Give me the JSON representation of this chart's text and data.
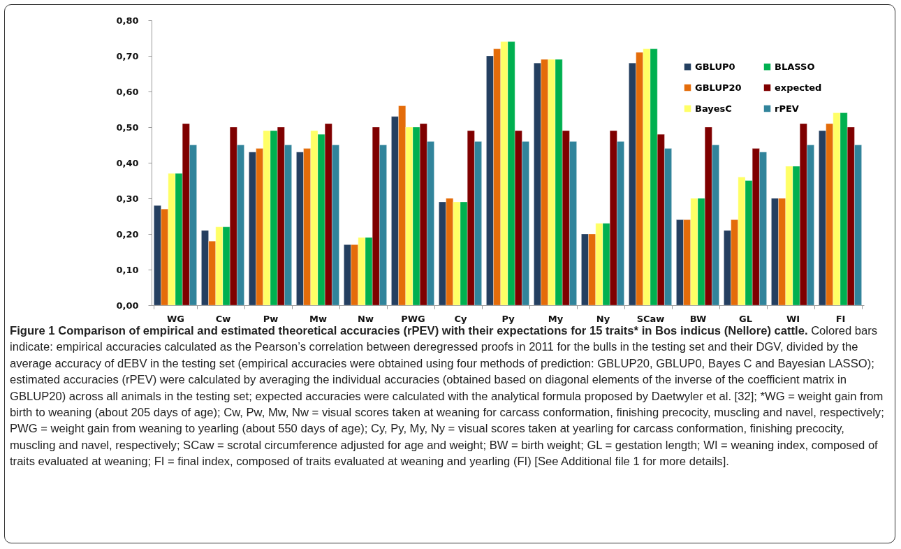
{
  "chart_data": {
    "type": "bar",
    "title": "Figure 1 Comparison of empirical and estimated theoretical accuracies (rPEV) with their expectations for 15 traits* in Bos indicus (Nellore) cattle.",
    "categories": [
      "WG",
      "Cw",
      "Pw",
      "Mw",
      "Nw",
      "PWG",
      "Cy",
      "Py",
      "My",
      "Ny",
      "SCaw",
      "BW",
      "GL",
      "WI",
      "FI"
    ],
    "series": [
      {
        "name": "GBLUP0",
        "color": "#243f60",
        "values": [
          0.28,
          0.21,
          0.43,
          0.43,
          0.17,
          0.53,
          0.29,
          0.7,
          0.68,
          0.2,
          0.68,
          0.24,
          0.21,
          0.3,
          0.49
        ]
      },
      {
        "name": "GBLUP20",
        "color": "#e46c0a",
        "values": [
          0.27,
          0.18,
          0.44,
          0.44,
          0.17,
          0.56,
          0.3,
          0.72,
          0.69,
          0.2,
          0.71,
          0.24,
          0.24,
          0.3,
          0.51
        ]
      },
      {
        "name": "BayesC",
        "color": "#ffff66",
        "values": [
          0.37,
          0.22,
          0.49,
          0.49,
          0.19,
          0.5,
          0.29,
          0.74,
          0.69,
          0.23,
          0.72,
          0.3,
          0.36,
          0.39,
          0.54
        ]
      },
      {
        "name": "BLASSO",
        "color": "#00b050",
        "values": [
          0.37,
          0.22,
          0.49,
          0.48,
          0.19,
          0.5,
          0.29,
          0.74,
          0.69,
          0.23,
          0.72,
          0.3,
          0.35,
          0.39,
          0.54
        ]
      },
      {
        "name": "expected",
        "color": "#7f0000",
        "values": [
          0.51,
          0.5,
          0.5,
          0.51,
          0.5,
          0.51,
          0.49,
          0.49,
          0.49,
          0.49,
          0.48,
          0.5,
          0.44,
          0.51,
          0.5
        ]
      },
      {
        "name": "rPEV",
        "color": "#31849b",
        "values": [
          0.45,
          0.45,
          0.45,
          0.45,
          0.45,
          0.46,
          0.46,
          0.46,
          0.46,
          0.46,
          0.44,
          0.45,
          0.43,
          0.45,
          0.45
        ]
      }
    ],
    "ylim": [
      0,
      0.8
    ],
    "yticks": [
      {
        "value": 0,
        "label": "0,00"
      },
      {
        "value": 0.1,
        "label": "0,10"
      },
      {
        "value": 0.2,
        "label": "0,20"
      },
      {
        "value": 0.3,
        "label": "0,30"
      },
      {
        "value": 0.4,
        "label": "0,40"
      },
      {
        "value": 0.5,
        "label": "0,50"
      },
      {
        "value": 0.6,
        "label": "0,60"
      },
      {
        "value": 0.7,
        "label": "0,70"
      },
      {
        "value": 0.8,
        "label": "0,80"
      }
    ],
    "grid": false,
    "legend": "top right",
    "annotations": [
      "Colored bars indicate: empirical accuracies calculated as the Pearson’s correlation between deregressed proofs in 2011 for the bulls in the testing set and their DGV, divided by the average accuracy of dEBV in the testing set (empirical accuracies were obtained using four methods of prediction: GBLUP20, GBLUP0, Bayes C and Bayesian LASSO); estimated accuracies (rPEV) were calculated by averaging the individual accuracies (obtained based on diagonal elements of the inverse of the coefficient matrix in GBLUP20) across all animals in the testing set; expected accuracies were calculated with the analytical formula proposed by Daetwyler et al. [32]; *WG = weight gain from birth to weaning (about 205 days of age); Cw, Pw, Mw, Nw = visual scores taken at weaning for carcass conformation, finishing precocity, muscling and navel, respectively; PWG = weight gain from weaning to yearling (about 550 days of age); Cy, Py, My, Ny = visual scores taken at yearling for carcass conformation, finishing precocity, muscling and navel, respectively; SCaw = scrotal circumference adjusted for age and weight; BW = birth weight; GL = gestation length; WI = weaning index, composed of traits evaluated at weaning; FI = final index, composed of traits evaluated at weaning and yearling (FI) [See Additional file 1 for more details]."
    ]
  }
}
